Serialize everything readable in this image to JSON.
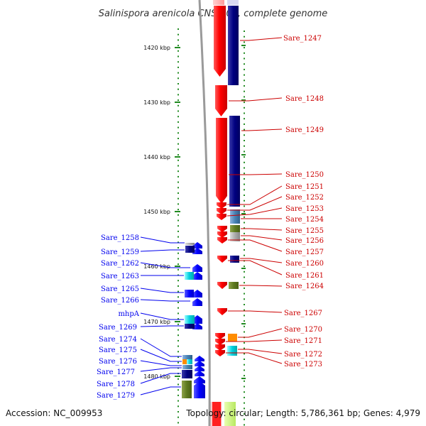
{
  "title": "Salinispora arenicola CNS-205, complete genome",
  "footer": {
    "accession": "Accession: NC_009953",
    "topology": "Topology: circular; Length: 5,786,361 bp; Genes: 4,979"
  },
  "ruler_labels": [
    "1420 kbp",
    "1430 kbp",
    "1440 kbp",
    "1450 kbp",
    "1460 kbp",
    "1470 kbp",
    "1480 kbp"
  ],
  "colors": {
    "forward_cds": "#ff0000",
    "reverse_cds": "#000080",
    "reverse_label": "#0000ee",
    "forward_label": "#cc0000",
    "tick": "#228b22",
    "backbone": "#9a9a9a"
  },
  "labels_left": [
    "Sare_1258",
    "Sare_1259",
    "Sare_1262",
    "Sare_1263",
    "Sare_1265",
    "Sare_1266",
    "mhpA",
    "Sare_1269",
    "Sare_1274",
    "Sare_1275",
    "Sare_1276",
    "Sare_1277",
    "Sare_1278",
    "Sare_1279"
  ],
  "labels_right": [
    "Sare_1247",
    "Sare_1248",
    "Sare_1249",
    "Sare_1250",
    "Sare_1251",
    "Sare_1252",
    "Sare_1253",
    "Sare_1254",
    "Sare_1255",
    "Sare_1256",
    "Sare_1257",
    "Sare_1260",
    "Sare_1261",
    "Sare_1264",
    "Sare_1267",
    "Sare_1270",
    "Sare_1271",
    "Sare_1272",
    "Sare_1273"
  ]
}
